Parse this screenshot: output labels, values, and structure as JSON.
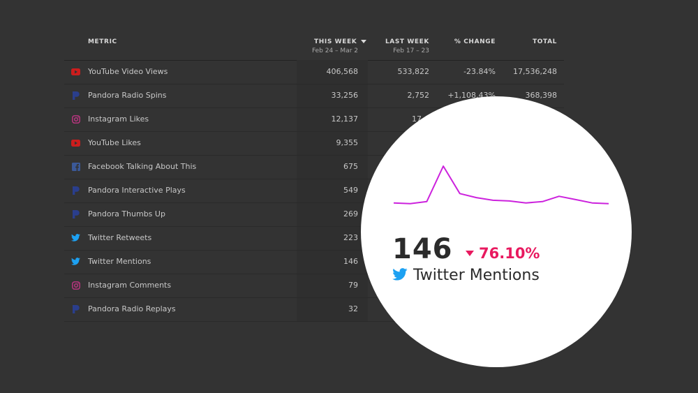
{
  "table": {
    "headers": {
      "metric": "METRIC",
      "this_week": "THIS WEEK",
      "this_week_range": "Feb 24 – Mar 2",
      "last_week": "LAST WEEK",
      "last_week_range": "Feb 17 – 23",
      "change": "% CHANGE",
      "total": "TOTAL"
    },
    "rows": [
      {
        "icon": "youtube-icon",
        "metric": "YouTube Video Views",
        "this_week": "406,568",
        "last_week": "533,822",
        "change": "-23.84%",
        "total": "17,536,248"
      },
      {
        "icon": "pandora-icon",
        "metric": "Pandora Radio Spins",
        "this_week": "33,256",
        "last_week": "2,752",
        "change": "+1,108.43%",
        "total": "368,398"
      },
      {
        "icon": "instagram-icon",
        "metric": "Instagram Likes",
        "this_week": "12,137",
        "last_week": "17…",
        "change": "",
        "total": ""
      },
      {
        "icon": "youtube-icon",
        "metric": "YouTube Likes",
        "this_week": "9,355",
        "last_week": "",
        "change": "",
        "total": ""
      },
      {
        "icon": "facebook-icon",
        "metric": "Facebook Talking About This",
        "this_week": "675",
        "last_week": "",
        "change": "",
        "total": ""
      },
      {
        "icon": "pandora-icon",
        "metric": "Pandora Interactive Plays",
        "this_week": "549",
        "last_week": "",
        "change": "",
        "total": ""
      },
      {
        "icon": "pandora-icon",
        "metric": "Pandora Thumbs Up",
        "this_week": "269",
        "last_week": "",
        "change": "",
        "total": ""
      },
      {
        "icon": "twitter-icon",
        "metric": "Twitter Retweets",
        "this_week": "223",
        "last_week": "",
        "change": "",
        "total": ""
      },
      {
        "icon": "twitter-icon",
        "metric": "Twitter Mentions",
        "this_week": "146",
        "last_week": "",
        "change": "",
        "total": ""
      },
      {
        "icon": "instagram-icon",
        "metric": "Instagram Comments",
        "this_week": "79",
        "last_week": "",
        "change": "",
        "total": ""
      },
      {
        "icon": "pandora-icon",
        "metric": "Pandora Radio Replays",
        "this_week": "32",
        "last_week": "",
        "change": "",
        "total": ""
      }
    ]
  },
  "zoom": {
    "value": "146",
    "delta": "76.10%",
    "delta_direction": "down",
    "icon": "twitter-icon",
    "label": "Twitter Mentions"
  },
  "colors": {
    "background": "#333333",
    "sparkline": "#cc22dd",
    "delta_negative": "#e8195f",
    "twitter": "#1da1f2",
    "youtube": "#cc1d1d",
    "pandora": "#2a3e8c",
    "facebook": "#3b5998",
    "instagram": "#c13584"
  },
  "chart_data": {
    "type": "line",
    "series": [
      {
        "values": [
          18,
          17,
          20,
          73,
          32,
          26,
          22,
          21,
          18,
          20,
          28,
          23,
          18,
          17
        ]
      }
    ]
  }
}
